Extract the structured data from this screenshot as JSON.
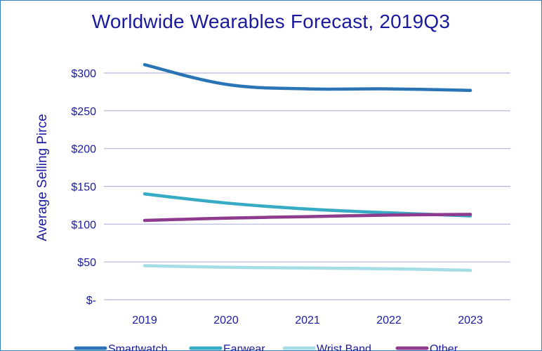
{
  "chart_data": {
    "type": "line",
    "title": "Worldwide Wearables Forecast, 2019Q3",
    "xlabel": "",
    "ylabel": "Average Selling Pirce",
    "categories": [
      "2019",
      "2020",
      "2021",
      "2022",
      "2023"
    ],
    "ylim": [
      0,
      300
    ],
    "yticks": [
      0,
      50,
      100,
      150,
      200,
      250,
      300
    ],
    "ytick_labels": [
      "$-",
      "$50",
      "$100",
      "$150",
      "$200",
      "$250",
      "$300"
    ],
    "grid": true,
    "legend_placement": "bottom",
    "series": [
      {
        "name": "Smartwatch",
        "color": "#2a74b5",
        "values": [
          311,
          285,
          279,
          279,
          277
        ]
      },
      {
        "name": "Earwear",
        "color": "#37aac4",
        "values": [
          140,
          128,
          120,
          115,
          111
        ]
      },
      {
        "name": "Wrist Band",
        "color": "#a6dce6",
        "values": [
          45,
          43,
          42,
          41,
          39
        ]
      },
      {
        "name": "Other",
        "color": "#8e3b8e",
        "values": [
          105,
          108,
          110,
          112,
          113
        ]
      }
    ]
  }
}
